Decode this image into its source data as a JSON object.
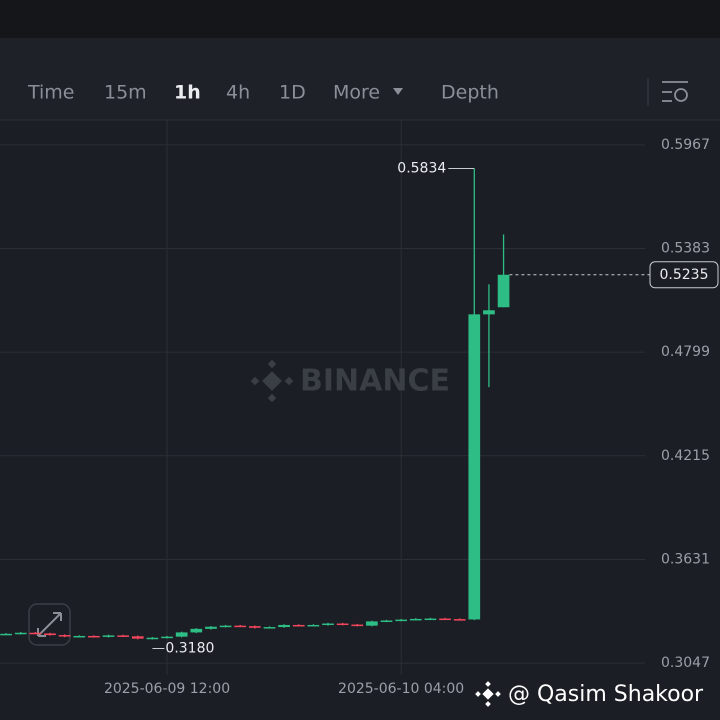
{
  "tabs": [
    "Time",
    "15m",
    "1h",
    "4h",
    "1D",
    "More",
    "Depth"
  ],
  "active_tab": "1h",
  "watermark": "BINANCE",
  "credit": "@ Qasim Shakoor",
  "chart_data": {
    "type": "candlestick",
    "x": [
      "2025-06-09 01:00",
      "2025-06-09 02:00",
      "2025-06-09 03:00",
      "2025-06-09 04:00",
      "2025-06-09 05:00",
      "2025-06-09 06:00",
      "2025-06-09 07:00",
      "2025-06-09 08:00",
      "2025-06-09 09:00",
      "2025-06-09 10:00",
      "2025-06-09 11:00",
      "2025-06-09 12:00",
      "2025-06-09 13:00",
      "2025-06-09 14:00",
      "2025-06-09 15:00",
      "2025-06-09 16:00",
      "2025-06-09 17:00",
      "2025-06-09 18:00",
      "2025-06-09 19:00",
      "2025-06-09 20:00",
      "2025-06-09 21:00",
      "2025-06-09 22:00",
      "2025-06-09 23:00",
      "2025-06-10 00:00",
      "2025-06-10 01:00",
      "2025-06-10 02:00",
      "2025-06-10 03:00",
      "2025-06-10 04:00",
      "2025-06-10 05:00",
      "2025-06-10 06:00",
      "2025-06-10 07:00",
      "2025-06-10 08:00",
      "2025-06-10 09:00",
      "2025-06-10 10:00",
      "2025-06-10 11:00"
    ],
    "open": [
      0.321,
      0.3212,
      0.3218,
      0.3214,
      0.3205,
      0.3197,
      0.32,
      0.3195,
      0.3203,
      0.3198,
      0.3185,
      0.319,
      0.3196,
      0.322,
      0.324,
      0.3252,
      0.3258,
      0.3255,
      0.3246,
      0.325,
      0.3262,
      0.3258,
      0.3262,
      0.327,
      0.3264,
      0.3258,
      0.3282,
      0.3287,
      0.3292,
      0.3296,
      0.3298,
      0.3295,
      0.3293,
      0.5012,
      0.5052
    ],
    "high": [
      0.3216,
      0.3222,
      0.3222,
      0.3218,
      0.3209,
      0.3204,
      0.3204,
      0.3207,
      0.3207,
      0.3202,
      0.3194,
      0.32,
      0.3224,
      0.3244,
      0.3256,
      0.3262,
      0.3262,
      0.3259,
      0.3254,
      0.3266,
      0.3266,
      0.3266,
      0.3274,
      0.3274,
      0.3268,
      0.3286,
      0.3291,
      0.3296,
      0.33,
      0.3302,
      0.3302,
      0.3299,
      0.5834,
      0.5181,
      0.5462
    ],
    "low": [
      0.3206,
      0.3208,
      0.321,
      0.3201,
      0.3193,
      0.3193,
      0.3191,
      0.3191,
      0.3194,
      0.3181,
      0.318,
      0.3186,
      0.3192,
      0.3216,
      0.3236,
      0.3248,
      0.3251,
      0.3242,
      0.3242,
      0.3246,
      0.3254,
      0.3254,
      0.3258,
      0.326,
      0.3254,
      0.3254,
      0.3278,
      0.3283,
      0.3288,
      0.3292,
      0.3291,
      0.3289,
      0.3289,
      0.4602,
      0.5052
    ],
    "close": [
      0.3212,
      0.3218,
      0.3214,
      0.3205,
      0.3197,
      0.32,
      0.3195,
      0.3203,
      0.3198,
      0.3185,
      0.319,
      0.3196,
      0.322,
      0.324,
      0.3252,
      0.3258,
      0.3255,
      0.3246,
      0.325,
      0.3262,
      0.3258,
      0.3262,
      0.327,
      0.3264,
      0.3258,
      0.3282,
      0.3287,
      0.3292,
      0.3296,
      0.3298,
      0.3295,
      0.3293,
      0.5012,
      0.5035,
      0.5235
    ],
    "up_color": "#2ebd85",
    "down_color": "#f6465d",
    "high_label": "0.5834",
    "low_label": "0.3180",
    "last_price_label": "0.5235",
    "ylim": [
      0.298,
      0.6107
    ],
    "yticks": [
      0.5967,
      0.5383,
      0.4799,
      0.4215,
      0.3631,
      0.3047
    ],
    "xlim": [
      "2025-06-09 00:35",
      "2025-06-10 20:40"
    ],
    "xticks": [
      "2025-06-09 12:00",
      "2025-06-10 04:00"
    ],
    "grid": true
  }
}
